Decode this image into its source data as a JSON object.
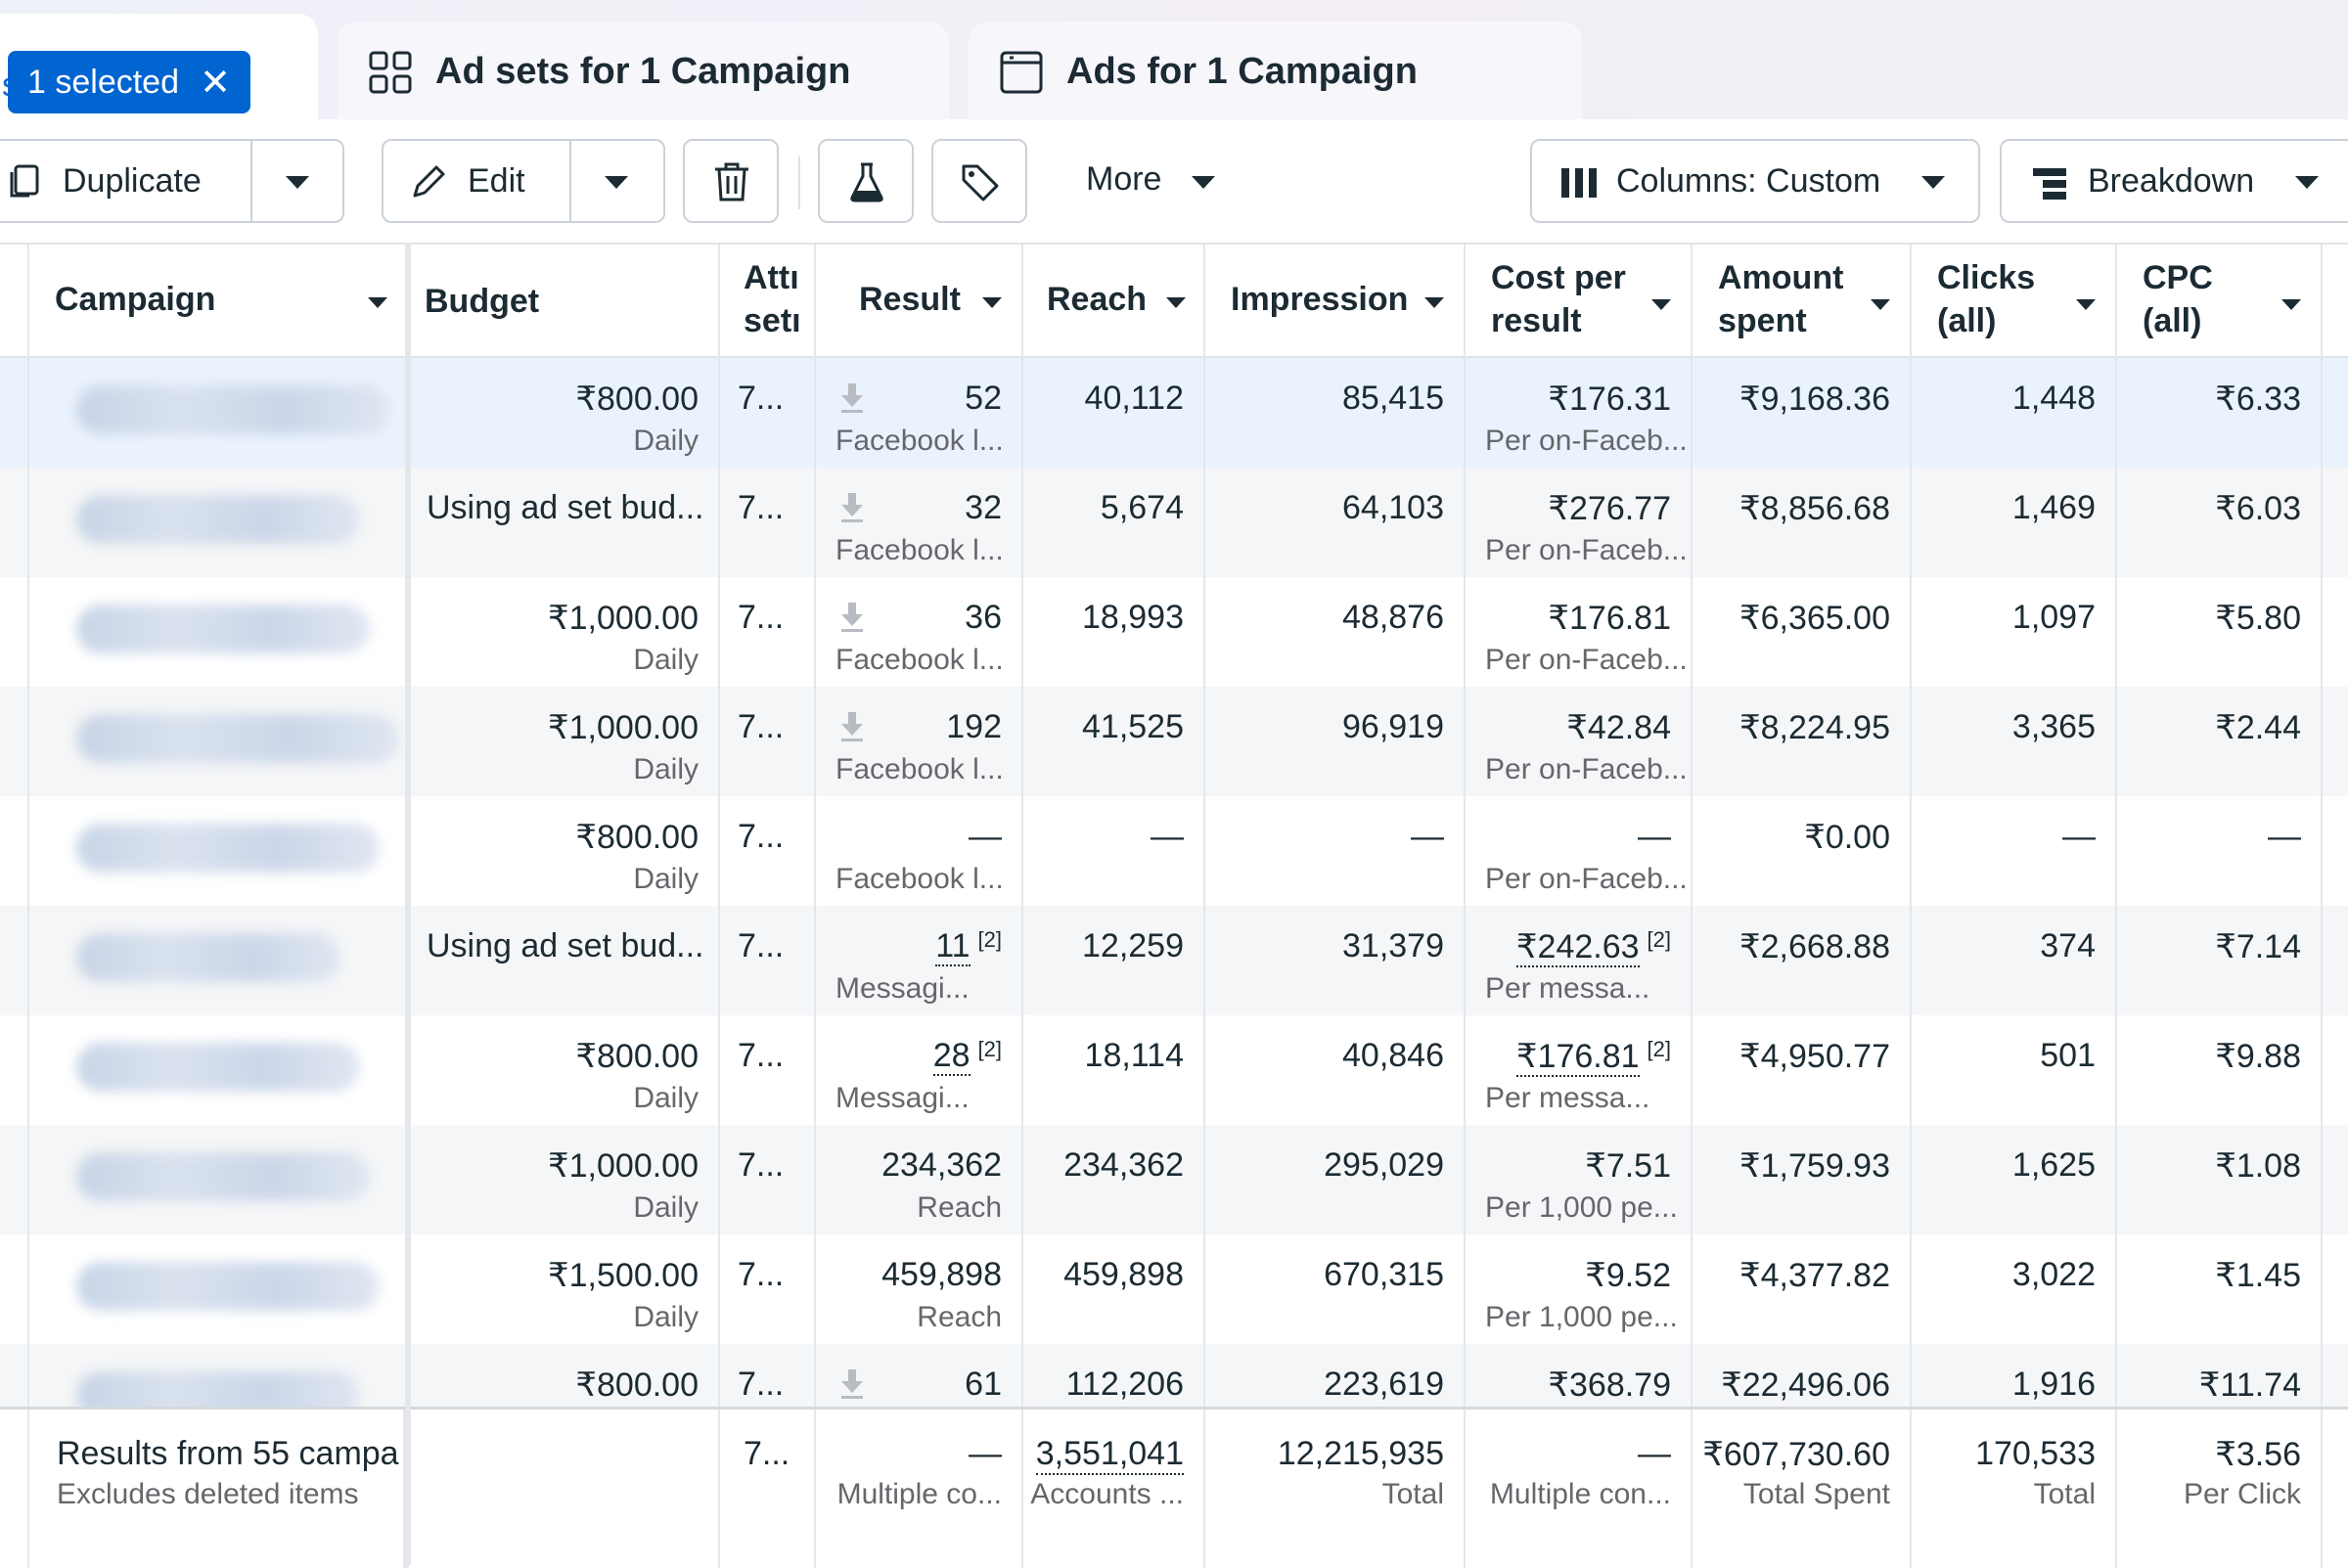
{
  "tabs": {
    "edge_text": "s",
    "selected_label": "1 selected",
    "close_glyph": "✕",
    "adsets_label": "Ad sets for 1 Campaign",
    "ads_label": "Ads for 1 Campaign"
  },
  "toolbar": {
    "duplicate_label": "Duplicate",
    "edit_label": "Edit",
    "more_label": "More",
    "columns_label": "Columns: Custom",
    "breakdown_label": "Breakdown"
  },
  "headers": {
    "campaign": "Campaign",
    "budget": "Budget",
    "attribution_1": "Attı",
    "attribution_2": "setı",
    "result": "Result",
    "reach": "Reach",
    "impression": "Impression",
    "cost_1": "Cost per",
    "cost_2": "result",
    "amount_1": "Amount",
    "amount_2": "spent",
    "clicks_1": "Clicks",
    "clicks_2": "(all)",
    "cpc_1": "CPC",
    "cpc_2": "(all)"
  },
  "rows": [
    {
      "budget": "₹800.00",
      "budget_sub": "Daily",
      "attr": "7...",
      "result": "52",
      "result_sub": "Facebook l...",
      "reach": "40,112",
      "impr": "85,415",
      "cost": "₹176.31",
      "cost_sub": "Per on-Faceb...",
      "spent": "₹9,168.36",
      "clicks": "1,448",
      "cpc": "₹6.33"
    },
    {
      "budget": "Using ad set bud...",
      "budget_sub": "",
      "attr": "7...",
      "result": "32",
      "result_sub": "Facebook l...",
      "reach": "5,674",
      "impr": "64,103",
      "cost": "₹276.77",
      "cost_sub": "Per on-Faceb...",
      "spent": "₹8,856.68",
      "clicks": "1,469",
      "cpc": "₹6.03"
    },
    {
      "budget": "₹1,000.00",
      "budget_sub": "Daily",
      "attr": "7...",
      "result": "36",
      "result_sub": "Facebook l...",
      "reach": "18,993",
      "impr": "48,876",
      "cost": "₹176.81",
      "cost_sub": "Per on-Faceb...",
      "spent": "₹6,365.00",
      "clicks": "1,097",
      "cpc": "₹5.80"
    },
    {
      "budget": "₹1,000.00",
      "budget_sub": "Daily",
      "attr": "7...",
      "result": "192",
      "result_sub": "Facebook l...",
      "reach": "41,525",
      "impr": "96,919",
      "cost": "₹42.84",
      "cost_sub": "Per on-Faceb...",
      "spent": "₹8,224.95",
      "clicks": "3,365",
      "cpc": "₹2.44"
    },
    {
      "budget": "₹800.00",
      "budget_sub": "Daily",
      "attr": "7...",
      "result": "—",
      "result_sub": "Facebook l...",
      "reach": "—",
      "impr": "—",
      "cost": "—",
      "cost_sub": "Per on-Faceb...",
      "spent": "₹0.00",
      "clicks": "—",
      "cpc": "—"
    },
    {
      "budget": "Using ad set bud...",
      "budget_sub": "",
      "attr": "7...",
      "result": "11",
      "result_note": "[2]",
      "result_sub": "Messagi...",
      "reach": "12,259",
      "impr": "31,379",
      "cost": "₹242.63",
      "cost_note": "[2]",
      "cost_sub": "Per messa...",
      "spent": "₹2,668.88",
      "clicks": "374",
      "cpc": "₹7.14"
    },
    {
      "budget": "₹800.00",
      "budget_sub": "Daily",
      "attr": "7...",
      "result": "28",
      "result_note": "[2]",
      "result_sub": "Messagi...",
      "reach": "18,114",
      "impr": "40,846",
      "cost": "₹176.81",
      "cost_note": "[2]",
      "cost_sub": "Per messa...",
      "spent": "₹4,950.77",
      "clicks": "501",
      "cpc": "₹9.88"
    },
    {
      "budget": "₹1,000.00",
      "budget_sub": "Daily",
      "attr": "7...",
      "result": "234,362",
      "result_sub": "Reach",
      "reach": "234,362",
      "impr": "295,029",
      "cost": "₹7.51",
      "cost_sub": "Per 1,000 pe...",
      "spent": "₹1,759.93",
      "clicks": "1,625",
      "cpc": "₹1.08"
    },
    {
      "budget": "₹1,500.00",
      "budget_sub": "Daily",
      "attr": "7...",
      "result": "459,898",
      "result_sub": "Reach",
      "reach": "459,898",
      "impr": "670,315",
      "cost": "₹9.52",
      "cost_sub": "Per 1,000 pe...",
      "spent": "₹4,377.82",
      "clicks": "3,022",
      "cpc": "₹1.45"
    },
    {
      "budget": "₹800.00",
      "budget_sub": "",
      "attr": "7...",
      "result": "61",
      "result_sub": "",
      "reach": "112,206",
      "impr": "223,619",
      "cost": "₹368.79",
      "cost_sub": "",
      "spent": "₹22,496.06",
      "clicks": "1,916",
      "cpc": "₹11.74"
    }
  ],
  "totals": {
    "label": "Results from 55 campa",
    "label_sub": "Excludes deleted items",
    "attr": "7...",
    "result": "—",
    "result_sub": "Multiple co...",
    "reach": "3,551,041",
    "reach_sub": "Accounts ...",
    "impr": "12,215,935",
    "impr_sub": "Total",
    "cost": "—",
    "cost_sub": "Multiple con...",
    "spent": "₹607,730.60",
    "spent_sub": "Total Spent",
    "clicks": "170,533",
    "clicks_sub": "Total",
    "cpc": "₹3.56",
    "cpc_sub": "Per Click"
  }
}
